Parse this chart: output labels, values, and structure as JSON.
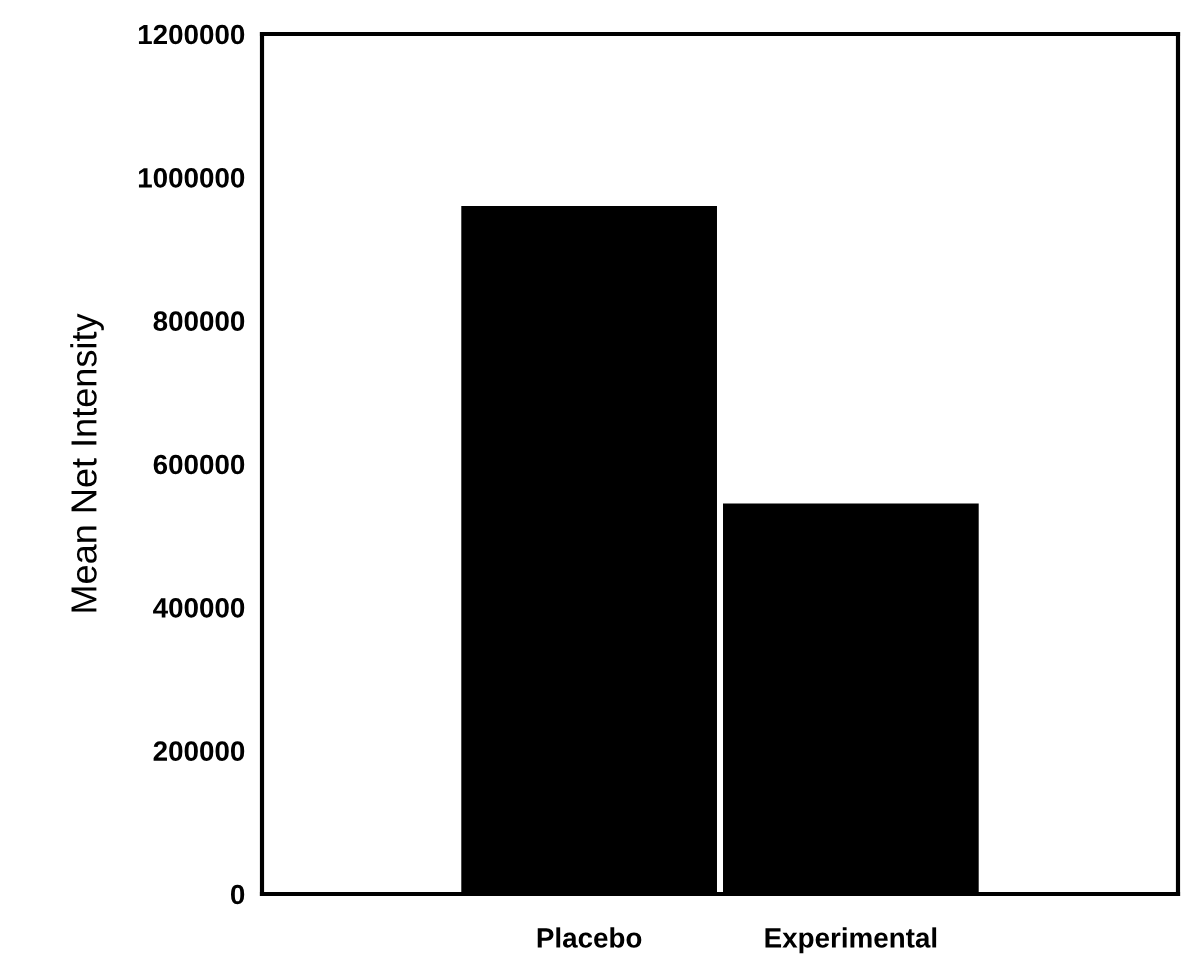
{
  "chart_data": {
    "type": "bar",
    "ylabel": "Mean Net Intensity",
    "categories": [
      "Placebo",
      "Experimental"
    ],
    "values": [
      960000,
      545000
    ],
    "color": "#000000",
    "ylim": [
      0,
      1200000
    ],
    "yticks": [
      0,
      200000,
      400000,
      600000,
      800000,
      1000000,
      1200000
    ],
    "grid": false
  }
}
